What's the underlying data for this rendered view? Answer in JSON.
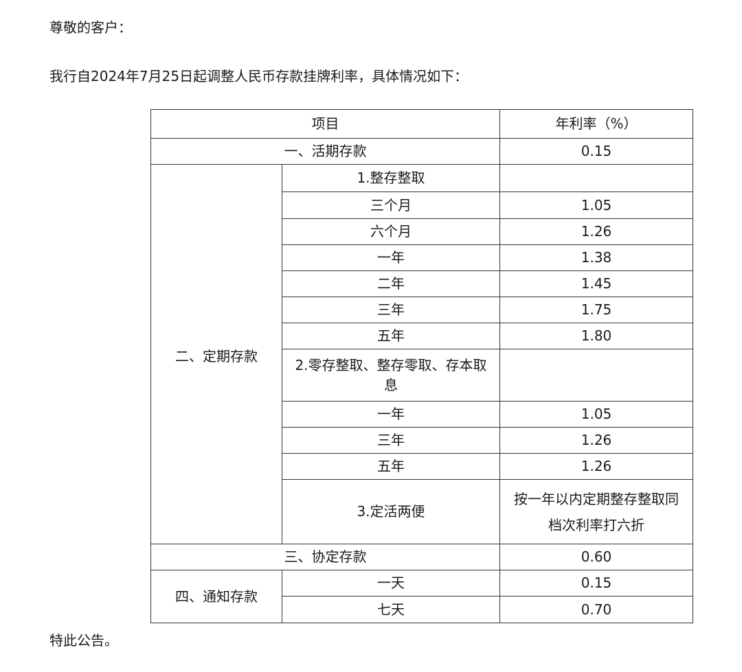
{
  "greeting": "尊敬的客户：",
  "intro": "我行自2024年7月25日起调整人民币存款挂牌利率，具体情况如下：",
  "table": {
    "headers": [
      "项目",
      "年利率（%）"
    ],
    "demand": {
      "label": "一、活期存款",
      "rate": "0.15"
    },
    "time": {
      "label": "二、定期存款",
      "lump": {
        "label": "1.整存整取",
        "rows": [
          {
            "term": "三个月",
            "rate": "1.05"
          },
          {
            "term": "六个月",
            "rate": "1.26"
          },
          {
            "term": "一年",
            "rate": "1.38"
          },
          {
            "term": "二年",
            "rate": "1.45"
          },
          {
            "term": "三年",
            "rate": "1.75"
          },
          {
            "term": "五年",
            "rate": "1.80"
          }
        ]
      },
      "installment": {
        "label": "2.零存整取、整存零取、存本取息",
        "rows": [
          {
            "term": "一年",
            "rate": "1.05"
          },
          {
            "term": "三年",
            "rate": "1.26"
          },
          {
            "term": "五年",
            "rate": "1.26"
          }
        ]
      },
      "flexible": {
        "label": "3.定活两便",
        "rate": "按一年以内定期整存整取同档次利率打六折"
      }
    },
    "agreement": {
      "label": "三、协定存款",
      "rate": "0.60"
    },
    "notice": {
      "label": "四、通知存款",
      "rows": [
        {
          "term": "一天",
          "rate": "0.15"
        },
        {
          "term": "七天",
          "rate": "0.70"
        }
      ]
    }
  },
  "closing": "特此公告。"
}
